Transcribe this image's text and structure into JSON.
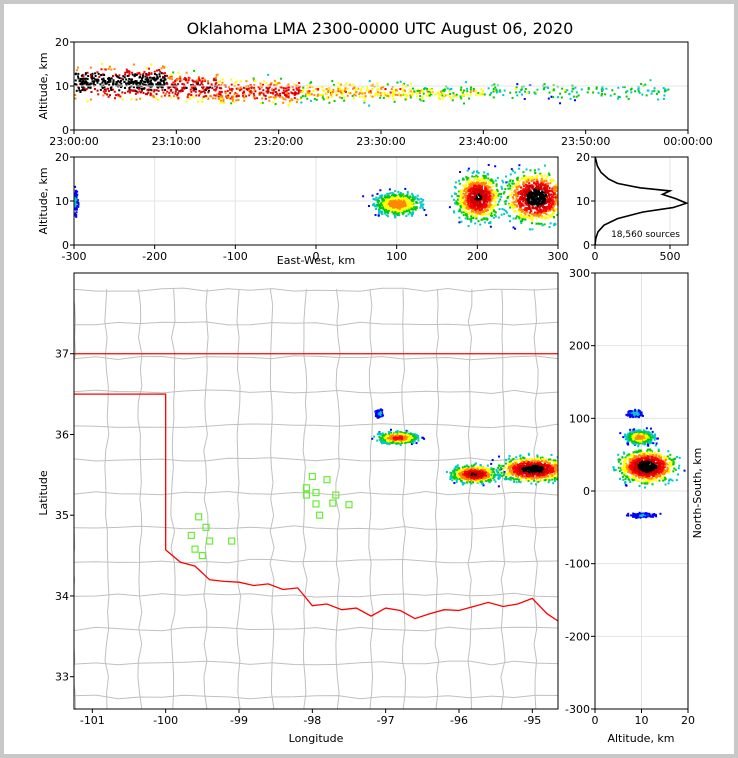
{
  "title": "Oklahoma LMA 2300-0000 UTC August 06, 2020",
  "colors": {
    "density": [
      "#0000ff",
      "#00c8c8",
      "#00cc00",
      "#ffff00",
      "#ff8800",
      "#ff0000",
      "#cc0000",
      "#000000"
    ],
    "state_border": "#ff0000",
    "county_border": "#c0c0c0",
    "station": "#66ee33",
    "profile_line": "#000000"
  },
  "chart_data": [
    {
      "name": "altitude-time",
      "type": "heatmap",
      "xlabel": "",
      "ylabel": "Altitude, km",
      "x_ticks": [
        "23:00:00",
        "23:10:00",
        "23:20:00",
        "23:30:00",
        "23:40:00",
        "23:50:00",
        "00:00:00"
      ],
      "x_range_minutes": [
        0,
        60
      ],
      "ylim": [
        0,
        20
      ],
      "y_ticks": [
        0,
        10,
        20
      ],
      "clusters": [
        {
          "t0": 0,
          "t1": 9,
          "z": 11,
          "spread": 4,
          "density": 0.9
        },
        {
          "t0": 9,
          "t1": 14,
          "z": 10,
          "spread": 3.5,
          "density": 0.7
        },
        {
          "t0": 14,
          "t1": 22,
          "z": 9,
          "spread": 3,
          "density": 0.6
        },
        {
          "t0": 22,
          "t1": 33,
          "z": 9,
          "spread": 2.5,
          "density": 0.4
        },
        {
          "t0": 33,
          "t1": 40,
          "z": 8.5,
          "spread": 2,
          "density": 0.3
        },
        {
          "t0": 40,
          "t1": 58,
          "z": 9,
          "spread": 2,
          "density": 0.15
        }
      ]
    },
    {
      "name": "east-west-altitude",
      "type": "heatmap",
      "xlabel": "East-West, km",
      "ylabel": "Altitude, km",
      "xlim": [
        -300,
        300
      ],
      "x_ticks": [
        -300,
        -200,
        -100,
        0,
        100,
        200,
        300
      ],
      "ylim": [
        0,
        20
      ],
      "y_ticks": [
        0,
        10,
        20
      ],
      "clusters": [
        {
          "x": 100,
          "z": 9.5,
          "sx": 20,
          "sz": 1.8,
          "density": 0.6
        },
        {
          "x": 200,
          "z": 11,
          "sx": 18,
          "sz": 3.5,
          "density": 0.9
        },
        {
          "x": 272,
          "z": 11,
          "sx": 25,
          "sz": 3.8,
          "density": 1.0
        },
        {
          "x": -300,
          "z": 10,
          "sx": 3,
          "sz": 2,
          "density": 0.15
        }
      ]
    },
    {
      "name": "altitude-histogram",
      "type": "line",
      "ylim": [
        0,
        20
      ],
      "xlim": [
        0,
        620
      ],
      "x_ticks": [
        0,
        500
      ],
      "y_ticks": [
        0,
        10,
        20
      ],
      "annotation": "18,560 sources",
      "profile": [
        {
          "count": 0,
          "z": 0
        },
        {
          "count": 5,
          "z": 1.5
        },
        {
          "count": 20,
          "z": 3
        },
        {
          "count": 60,
          "z": 4.5
        },
        {
          "count": 150,
          "z": 6
        },
        {
          "count": 320,
          "z": 7.5
        },
        {
          "count": 520,
          "z": 8.5
        },
        {
          "count": 610,
          "z": 9.5
        },
        {
          "count": 540,
          "z": 10.5
        },
        {
          "count": 450,
          "z": 11.5
        },
        {
          "count": 500,
          "z": 12.3
        },
        {
          "count": 300,
          "z": 13
        },
        {
          "count": 150,
          "z": 14
        },
        {
          "count": 90,
          "z": 15
        },
        {
          "count": 40,
          "z": 16.5
        },
        {
          "count": 15,
          "z": 18
        },
        {
          "count": 5,
          "z": 19.5
        },
        {
          "count": 0,
          "z": 20
        }
      ]
    },
    {
      "name": "plan-view",
      "type": "heatmap",
      "xlabel": "Longitude",
      "ylabel": "Latitude",
      "xlim": [
        -101.25,
        -94.65
      ],
      "ylim": [
        32.6,
        38.0
      ],
      "x_ticks": [
        -101,
        -100,
        -99,
        -98,
        -97,
        -96,
        -95
      ],
      "y_ticks": [
        33,
        34,
        35,
        36,
        37
      ],
      "clusters": [
        {
          "lon": -96.85,
          "lat": 35.97,
          "slon": 0.18,
          "slat": 0.05,
          "density": 0.7
        },
        {
          "lon": -95.8,
          "lat": 35.52,
          "slon": 0.2,
          "slat": 0.07,
          "density": 0.9
        },
        {
          "lon": -95.0,
          "lat": 35.58,
          "slon": 0.3,
          "slat": 0.1,
          "density": 1.0
        },
        {
          "lon": -97.1,
          "lat": 36.27,
          "slon": 0.03,
          "slat": 0.03,
          "density": 0.2
        }
      ],
      "stations": [
        [
          -99.55,
          34.98
        ],
        [
          -99.45,
          34.85
        ],
        [
          -99.65,
          34.75
        ],
        [
          -99.4,
          34.68
        ],
        [
          -99.6,
          34.58
        ],
        [
          -99.5,
          34.5
        ],
        [
          -99.1,
          34.68
        ],
        [
          -98.0,
          35.48
        ],
        [
          -97.8,
          35.44
        ],
        [
          -98.08,
          35.34
        ],
        [
          -97.95,
          35.28
        ],
        [
          -98.08,
          35.25
        ],
        [
          -97.68,
          35.25
        ],
        [
          -97.72,
          35.15
        ],
        [
          -97.95,
          35.14
        ],
        [
          -97.5,
          35.13
        ],
        [
          -97.9,
          35.0
        ]
      ]
    },
    {
      "name": "north-south-altitude",
      "type": "heatmap",
      "xlabel": "Altitude, km",
      "ylabel": "North-South, km",
      "xlim": [
        0,
        20
      ],
      "x_ticks": [
        0,
        10,
        20
      ],
      "ylim": [
        -300,
        300
      ],
      "y_ticks": [
        -300,
        -200,
        -100,
        0,
        100,
        200,
        300
      ],
      "clusters": [
        {
          "z": 11,
          "y": 35,
          "sz": 4,
          "sy": 15,
          "density": 1.0
        },
        {
          "z": 9.5,
          "y": 75,
          "sz": 2,
          "sy": 6,
          "density": 0.6
        },
        {
          "z": 8.5,
          "y": 108,
          "sz": 1,
          "sy": 3,
          "density": 0.2
        },
        {
          "z": 10,
          "y": -32,
          "sz": 2,
          "sy": 2,
          "density": 0.15
        }
      ]
    }
  ]
}
